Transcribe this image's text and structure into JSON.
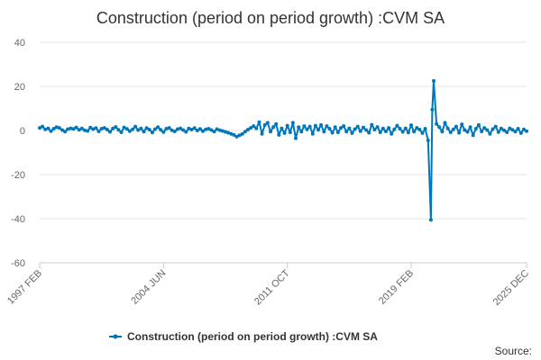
{
  "chart_data": {
    "type": "line",
    "title": "Construction (period on period growth) :CVM SA",
    "xlabel": "",
    "ylabel": "",
    "ylim": [
      -60,
      40
    ],
    "yticks": [
      -60,
      -40,
      -20,
      0,
      20,
      40
    ],
    "x_range": [
      "1997 FEB",
      "2025 DEC"
    ],
    "xticks": [
      "1997 FEB",
      "2004 JUN",
      "2011 OCT",
      "2019 FEB",
      "2025 DEC"
    ],
    "grid": true,
    "legend": "bottom",
    "series": [
      {
        "name": "Construction (period on period growth) :CVM SA",
        "color": "#0077bb",
        "points": [
          [
            "1997 FEB",
            1.2
          ],
          [
            "1997 APR",
            1.8
          ],
          [
            "1997 JUN",
            0.5
          ],
          [
            "1997 AUG",
            1.0
          ],
          [
            "1997 OCT",
            -0.3
          ],
          [
            "1997 DEC",
            0.8
          ],
          [
            "1998 FEB",
            1.5
          ],
          [
            "1998 APR",
            1.2
          ],
          [
            "1998 JUN",
            0.2
          ],
          [
            "1998 AUG",
            -0.5
          ],
          [
            "1998 OCT",
            0.6
          ],
          [
            "1998 DEC",
            1.0
          ],
          [
            "1999 FEB",
            0.7
          ],
          [
            "1999 APR",
            1.4
          ],
          [
            "1999 JUN",
            0.3
          ],
          [
            "1999 AUG",
            0.9
          ],
          [
            "1999 OCT",
            0.1
          ],
          [
            "1999 DEC",
            -0.2
          ],
          [
            "2000 FEB",
            1.3
          ],
          [
            "2000 APR",
            0.6
          ],
          [
            "2000 JUN",
            1.1
          ],
          [
            "2000 AUG",
            -0.4
          ],
          [
            "2000 OCT",
            0.8
          ],
          [
            "2000 DEC",
            1.2
          ],
          [
            "2001 FEB",
            0.4
          ],
          [
            "2001 APR",
            -0.6
          ],
          [
            "2001 JUN",
            0.9
          ],
          [
            "2001 AUG",
            1.6
          ],
          [
            "2001 OCT",
            0.3
          ],
          [
            "2001 DEC",
            -0.8
          ],
          [
            "2002 FEB",
            1.4
          ],
          [
            "2002 APR",
            0.7
          ],
          [
            "2002 JUN",
            -0.3
          ],
          [
            "2002 AUG",
            0.5
          ],
          [
            "2002 OCT",
            1.8
          ],
          [
            "2002 DEC",
            0.2
          ],
          [
            "2003 FEB",
            0.9
          ],
          [
            "2003 APR",
            -0.5
          ],
          [
            "2003 JUN",
            1.1
          ],
          [
            "2003 AUG",
            0.4
          ],
          [
            "2003 OCT",
            -0.9
          ],
          [
            "2003 DEC",
            0.6
          ],
          [
            "2004 FEB",
            1.5
          ],
          [
            "2004 APR",
            0.3
          ],
          [
            "2004 JUN",
            -0.7
          ],
          [
            "2004 AUG",
            0.8
          ],
          [
            "2004 OCT",
            1.2
          ],
          [
            "2004 DEC",
            0.1
          ],
          [
            "2005 FEB",
            -0.4
          ],
          [
            "2005 APR",
            0.6
          ],
          [
            "2005 JUN",
            1.0
          ],
          [
            "2005 AUG",
            0.2
          ],
          [
            "2005 OCT",
            -0.6
          ],
          [
            "2005 DEC",
            0.9
          ],
          [
            "2006 FEB",
            0.4
          ],
          [
            "2006 APR",
            1.1
          ],
          [
            "2006 JUN",
            0.0
          ],
          [
            "2006 AUG",
            0.7
          ],
          [
            "2006 OCT",
            -0.3
          ],
          [
            "2006 DEC",
            0.5
          ],
          [
            "2007 FEB",
            0.8
          ],
          [
            "2007 APR",
            0.2
          ],
          [
            "2007 JUN",
            -0.5
          ],
          [
            "2007 AUG",
            0.6
          ],
          [
            "2007 OCT",
            0.1
          ],
          [
            "2007 DEC",
            -0.2
          ],
          [
            "2008 FEB",
            -0.6
          ],
          [
            "2008 APR",
            -1.0
          ],
          [
            "2008 JUN",
            -1.5
          ],
          [
            "2008 AUG",
            -2.0
          ],
          [
            "2008 OCT",
            -2.8
          ],
          [
            "2008 DEC",
            -2.2
          ],
          [
            "2009 FEB",
            -1.6
          ],
          [
            "2009 APR",
            -0.5
          ],
          [
            "2009 JUN",
            0.4
          ],
          [
            "2009 AUG",
            1.2
          ],
          [
            "2009 OCT",
            2.0
          ],
          [
            "2009 DEC",
            1.0
          ],
          [
            "2010 FEB",
            3.8
          ],
          [
            "2010 APR",
            -1.5
          ],
          [
            "2010 JUN",
            2.5
          ],
          [
            "2010 AUG",
            3.5
          ],
          [
            "2010 OCT",
            -0.5
          ],
          [
            "2010 DEC",
            1.5
          ],
          [
            "2011 FEB",
            3.0
          ],
          [
            "2011 APR",
            -2.0
          ],
          [
            "2011 JUN",
            1.0
          ],
          [
            "2011 AUG",
            -1.2
          ],
          [
            "2011 OCT",
            2.2
          ],
          [
            "2011 DEC",
            -0.8
          ],
          [
            "2012 FEB",
            3.5
          ],
          [
            "2012 APR",
            -3.5
          ],
          [
            "2012 JUN",
            1.5
          ],
          [
            "2012 AUG",
            -0.5
          ],
          [
            "2012 OCT",
            2.0
          ],
          [
            "2012 DEC",
            0.5
          ],
          [
            "2013 FEB",
            1.8
          ],
          [
            "2013 APR",
            -1.5
          ],
          [
            "2013 JUN",
            2.2
          ],
          [
            "2013 AUG",
            0.3
          ],
          [
            "2013 OCT",
            2.5
          ],
          [
            "2013 DEC",
            -0.5
          ],
          [
            "2014 FEB",
            2.0
          ],
          [
            "2014 APR",
            0.8
          ],
          [
            "2014 JUN",
            -1.0
          ],
          [
            "2014 AUG",
            1.5
          ],
          [
            "2014 OCT",
            -0.8
          ],
          [
            "2014 DEC",
            1.2
          ],
          [
            "2015 FEB",
            2.0
          ],
          [
            "2015 APR",
            -0.5
          ],
          [
            "2015 JUN",
            1.0
          ],
          [
            "2015 AUG",
            -1.2
          ],
          [
            "2015 OCT",
            0.6
          ],
          [
            "2015 DEC",
            1.8
          ],
          [
            "2016 FEB",
            -0.3
          ],
          [
            "2016 APR",
            1.4
          ],
          [
            "2016 JUN",
            0.2
          ],
          [
            "2016 AUG",
            -1.0
          ],
          [
            "2016 OCT",
            2.6
          ],
          [
            "2016 DEC",
            0.4
          ],
          [
            "2017 FEB",
            1.6
          ],
          [
            "2017 APR",
            -0.8
          ],
          [
            "2017 JUN",
            0.9
          ],
          [
            "2017 AUG",
            -0.4
          ],
          [
            "2017 OCT",
            1.2
          ],
          [
            "2017 DEC",
            -1.5
          ],
          [
            "2018 FEB",
            0.5
          ],
          [
            "2018 APR",
            2.2
          ],
          [
            "2018 JUN",
            0.8
          ],
          [
            "2018 AUG",
            -0.6
          ],
          [
            "2018 OCT",
            1.0
          ],
          [
            "2018 DEC",
            -0.9
          ],
          [
            "2019 FEB",
            2.4
          ],
          [
            "2019 APR",
            -0.5
          ],
          [
            "2019 JUN",
            1.2
          ],
          [
            "2019 AUG",
            0.4
          ],
          [
            "2019 OCT",
            -1.2
          ],
          [
            "2019 DEC",
            0.8
          ],
          [
            "2020 FEB",
            -4.5
          ],
          [
            "2020 APR",
            -40.5
          ],
          [
            "2020 MAY",
            9.5
          ],
          [
            "2020 JUN",
            22.5
          ],
          [
            "2020 AUG",
            3.0
          ],
          [
            "2020 OCT",
            1.5
          ],
          [
            "2020 DEC",
            -0.5
          ],
          [
            "2021 FEB",
            3.5
          ],
          [
            "2021 APR",
            1.0
          ],
          [
            "2021 JUN",
            -0.8
          ],
          [
            "2021 AUG",
            0.5
          ],
          [
            "2021 OCT",
            1.8
          ],
          [
            "2021 DEC",
            -1.0
          ],
          [
            "2022 FEB",
            2.8
          ],
          [
            "2022 APR",
            0.2
          ],
          [
            "2022 JUN",
            -0.6
          ],
          [
            "2022 AUG",
            1.5
          ],
          [
            "2022 OCT",
            -2.2
          ],
          [
            "2022 DEC",
            0.8
          ],
          [
            "2023 FEB",
            2.5
          ],
          [
            "2023 APR",
            -0.4
          ],
          [
            "2023 JUN",
            1.2
          ],
          [
            "2023 AUG",
            0.2
          ],
          [
            "2023 OCT",
            -1.5
          ],
          [
            "2023 DEC",
            0.6
          ],
          [
            "2024 FEB",
            1.8
          ],
          [
            "2024 APR",
            -0.7
          ],
          [
            "2024 JUN",
            0.9
          ],
          [
            "2024 AUG",
            0.1
          ],
          [
            "2024 OCT",
            -0.8
          ],
          [
            "2024 DEC",
            1.0
          ],
          [
            "2025 FEB",
            0.3
          ],
          [
            "2025 APR",
            -0.5
          ],
          [
            "2025 JUN",
            0.8
          ],
          [
            "2025 AUG",
            -1.2
          ],
          [
            "2025 OCT",
            0.5
          ],
          [
            "2025 DEC",
            -0.3
          ]
        ]
      }
    ]
  },
  "legend": {
    "label": "Construction (period on period growth) :CVM SA"
  },
  "source": {
    "label": "Source:"
  }
}
